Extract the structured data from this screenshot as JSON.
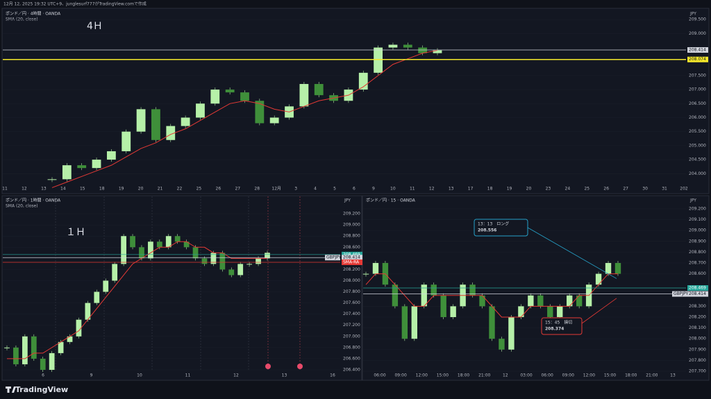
{
  "header": {
    "caption": "12月 12, 2025 19:32 UTC+9、junglesurf777がTradingView.comで作成"
  },
  "logo": "TradingView",
  "candle_up_color": "#b6f0a8",
  "candle_down_color": "#3f8f3a",
  "sma_color": "#e53935",
  "panels": [
    {
      "title": "ポンド／円 · 4時間 · OANDA",
      "indicator": "SMA (20, close)",
      "timeframe": "4Ｈ",
      "currency": "JPY",
      "ylim": [
        203.61,
        209.85
      ],
      "yticks": [
        {
          "value": 209.5,
          "label": "209.500"
        },
        {
          "value": 209,
          "label": "209.000"
        },
        {
          "value": 207.5,
          "label": "207.500"
        },
        {
          "value": 207,
          "label": "207.000"
        },
        {
          "value": 206.5,
          "label": "206.500"
        },
        {
          "value": 206,
          "label": "206.000"
        },
        {
          "value": 205.5,
          "label": "205.500"
        },
        {
          "value": 205,
          "label": "205.000"
        },
        {
          "value": 204.5,
          "label": "204.500"
        },
        {
          "value": 204,
          "label": "204.000"
        }
      ],
      "xlabels": [
        "11",
        "12",
        "13",
        "14",
        "15",
        "18",
        "19",
        "20",
        "21",
        "22",
        "25",
        "26",
        "27",
        "28",
        "12月",
        "3",
        "4",
        "5",
        "6",
        "9",
        "10",
        "11",
        "12",
        "13",
        "17",
        "18",
        "19",
        "20",
        "23",
        "24",
        "25",
        "26",
        "27",
        "30",
        "31",
        "202"
      ],
      "closes": [
        203.8,
        204.3,
        204.2,
        204.5,
        204.8,
        205.5,
        206.3,
        205.2,
        205.7,
        206.0,
        206.5,
        207.0,
        206.9,
        206.6,
        205.8,
        206.0,
        206.4,
        207.2,
        206.8,
        206.6,
        207.0,
        207.6,
        208.5,
        208.6,
        208.5,
        208.3,
        208.4
      ],
      "sma": [
        203.5,
        203.7,
        203.9,
        204.1,
        204.3,
        204.6,
        204.9,
        205.1,
        205.4,
        205.6,
        205.9,
        206.2,
        206.5,
        206.6,
        206.5,
        206.3,
        206.2,
        206.4,
        206.6,
        206.7,
        206.8,
        207.1,
        207.5,
        207.9,
        208.1,
        208.3,
        208.4
      ],
      "price_tags": [
        {
          "value": 208.414,
          "color": "#d1d4dc",
          "text_color": "#131722"
        },
        {
          "value": 208.074,
          "color": "#f5e82a",
          "text_color": "#131722"
        }
      ]
    },
    {
      "title": "ポンド／円 · 1時間 · OANDA",
      "indicator": "SMA (20, close)",
      "timeframe": "１Ｈ",
      "currency": "JPY",
      "ylim": [
        206.375,
        209.5125
      ],
      "yticks": [
        {
          "value": 209.2,
          "label": "209.200"
        },
        {
          "value": 209,
          "label": "209.000"
        },
        {
          "value": 208.8,
          "label": "208.800"
        },
        {
          "value": 208.6,
          "label": "208.600"
        },
        {
          "value": 208.2,
          "label": "208.200"
        },
        {
          "value": 208,
          "label": "208.000"
        },
        {
          "value": 207.8,
          "label": "207.800"
        },
        {
          "value": 207.6,
          "label": "207.600"
        },
        {
          "value": 207.4,
          "label": "207.400"
        },
        {
          "value": 207.2,
          "label": "207.200"
        },
        {
          "value": 207,
          "label": "207.000"
        },
        {
          "value": 206.8,
          "label": "206.800"
        },
        {
          "value": 206.6,
          "label": "206.600"
        },
        {
          "value": 206.4,
          "label": "206.400"
        }
      ],
      "xlabels": [
        "6",
        "9",
        "10",
        "11",
        "12",
        "13",
        "16"
      ],
      "closes": [
        206.8,
        206.5,
        207.0,
        206.6,
        206.4,
        206.7,
        206.9,
        207.0,
        207.3,
        207.6,
        207.8,
        208.0,
        208.3,
        208.8,
        208.6,
        208.4,
        208.7,
        208.6,
        208.8,
        208.7,
        208.6,
        208.4,
        208.3,
        208.5,
        208.2,
        208.1,
        208.3,
        208.3,
        208.4,
        208.5
      ],
      "sma": [
        206.6,
        206.6,
        206.6,
        206.7,
        206.7,
        206.8,
        206.9,
        207.0,
        207.1,
        207.3,
        207.5,
        207.7,
        207.9,
        208.1,
        208.3,
        208.4,
        208.5,
        208.6,
        208.6,
        208.7,
        208.7,
        208.6,
        208.6,
        208.5,
        208.5,
        208.4,
        208.4,
        208.4,
        208.4,
        208.4
      ],
      "price_tags": [
        {
          "value": 208.469,
          "color": "#26a69a",
          "text_color": "#ffffff"
        },
        {
          "value": 208.414,
          "color": "#d1d4dc",
          "text_color": "#131722",
          "prefix": "GBPJPY"
        },
        {
          "value": 208.33,
          "color": "#e53935",
          "text_color": "#ffffff",
          "label": "SMA-RA"
        }
      ]
    },
    {
      "title": "ポンド／円 · 15 · OANDA",
      "currency": "JPY",
      "ylim": [
        207.7,
        209.315
      ],
      "yticks": [
        {
          "value": 209.2,
          "label": "209.200"
        },
        {
          "value": 209.1,
          "label": "209.100"
        },
        {
          "value": 209,
          "label": "209.000"
        },
        {
          "value": 208.9,
          "label": "208.900"
        },
        {
          "value": 208.8,
          "label": "208.800"
        },
        {
          "value": 208.7,
          "label": "208.700"
        },
        {
          "value": 208.6,
          "label": "208.600"
        },
        {
          "value": 208.3,
          "label": "208.300"
        },
        {
          "value": 208.2,
          "label": "208.200"
        },
        {
          "value": 208.1,
          "label": "208.100"
        },
        {
          "value": 208,
          "label": "208.000"
        },
        {
          "value": 207.9,
          "label": "207.900"
        },
        {
          "value": 207.8,
          "label": "207.800"
        },
        {
          "value": 207.7,
          "label": "207.700"
        }
      ],
      "xlabels": [
        "06:00",
        "09:00",
        "12:00",
        "15:00",
        "18:00",
        "21:00",
        "12",
        "03:00",
        "06:00",
        "09:00",
        "12:00",
        "15:00",
        "18:00",
        "21:00",
        "13"
      ],
      "closes": [
        208.6,
        208.7,
        208.5,
        208.3,
        208.0,
        208.3,
        208.5,
        208.4,
        208.2,
        208.3,
        208.5,
        208.4,
        208.3,
        208.0,
        207.9,
        208.2,
        208.3,
        208.4,
        208.3,
        208.2,
        208.3,
        208.4,
        208.3,
        208.5,
        208.6,
        208.7,
        208.6
      ],
      "sma": [
        208.5,
        208.6,
        208.6,
        208.5,
        208.4,
        208.3,
        208.3,
        208.4,
        208.4,
        208.4,
        208.4,
        208.4,
        208.4,
        208.3,
        208.2,
        208.2,
        208.2,
        208.3,
        208.3,
        208.3,
        208.3,
        208.3,
        208.4,
        208.4,
        208.5,
        208.6,
        208.6
      ],
      "price_tags": [
        {
          "value": 208.469,
          "color": "#26a69a",
          "text_color": "#ffffff"
        },
        {
          "value": 208.414,
          "color": "#d1d4dc",
          "text_color": "#131722",
          "prefix": "GBPJPY"
        }
      ],
      "annotations": [
        {
          "text": "13：13　ロング",
          "price": 208.556,
          "color": "#26a2c9"
        },
        {
          "text": "15：45　損切",
          "price": 208.374,
          "color": "#e53935"
        }
      ]
    }
  ]
}
